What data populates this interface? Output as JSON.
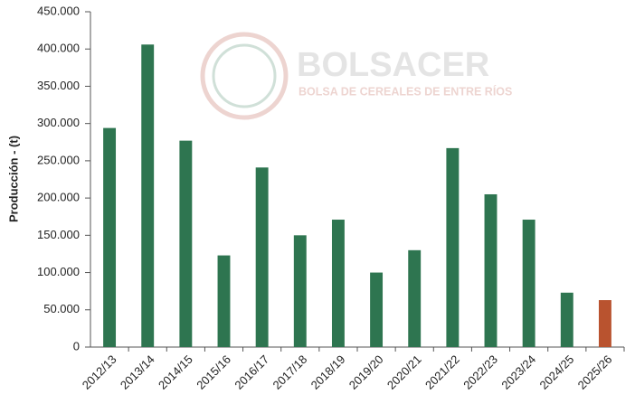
{
  "chart_data": {
    "type": "bar",
    "ylabel": "Producción - (t)",
    "watermark_title": "BOLSACER",
    "watermark_subtitle": "BOLSA DE CEREALES DE ENTRE RÍOS",
    "categories": [
      "2012/13",
      "2013/14",
      "2014/15",
      "2015/16",
      "2016/17",
      "2017/18",
      "2018/19",
      "2019/20",
      "2020/21",
      "2021/22",
      "2022/23",
      "2023/24",
      "2024/25",
      "2025/26"
    ],
    "values": [
      294000,
      406000,
      277000,
      123000,
      241000,
      150000,
      171000,
      100000,
      130000,
      267000,
      205000,
      171000,
      73000,
      63000
    ],
    "colors": [
      "#2e7550",
      "#2e7550",
      "#2e7550",
      "#2e7550",
      "#2e7550",
      "#2e7550",
      "#2e7550",
      "#2e7550",
      "#2e7550",
      "#2e7550",
      "#2e7550",
      "#2e7550",
      "#2e7550",
      "#b9532f"
    ],
    "ylim": [
      0,
      450000
    ],
    "yticks": [
      0,
      {
        "value": 50000,
        "label": "50.000"
      },
      {
        "value": 100000,
        "label": "100.000"
      },
      {
        "value": 150000,
        "label": "150.000"
      },
      {
        "value": 200000,
        "label": "200.000"
      },
      {
        "value": 250000,
        "label": "250.000"
      },
      {
        "value": 300000,
        "label": "300.000"
      },
      {
        "value": 350000,
        "label": "350.000"
      },
      {
        "value": 400000,
        "label": "400.000"
      },
      {
        "value": 450000,
        "label": "450.000"
      }
    ],
    "grid": false
  }
}
